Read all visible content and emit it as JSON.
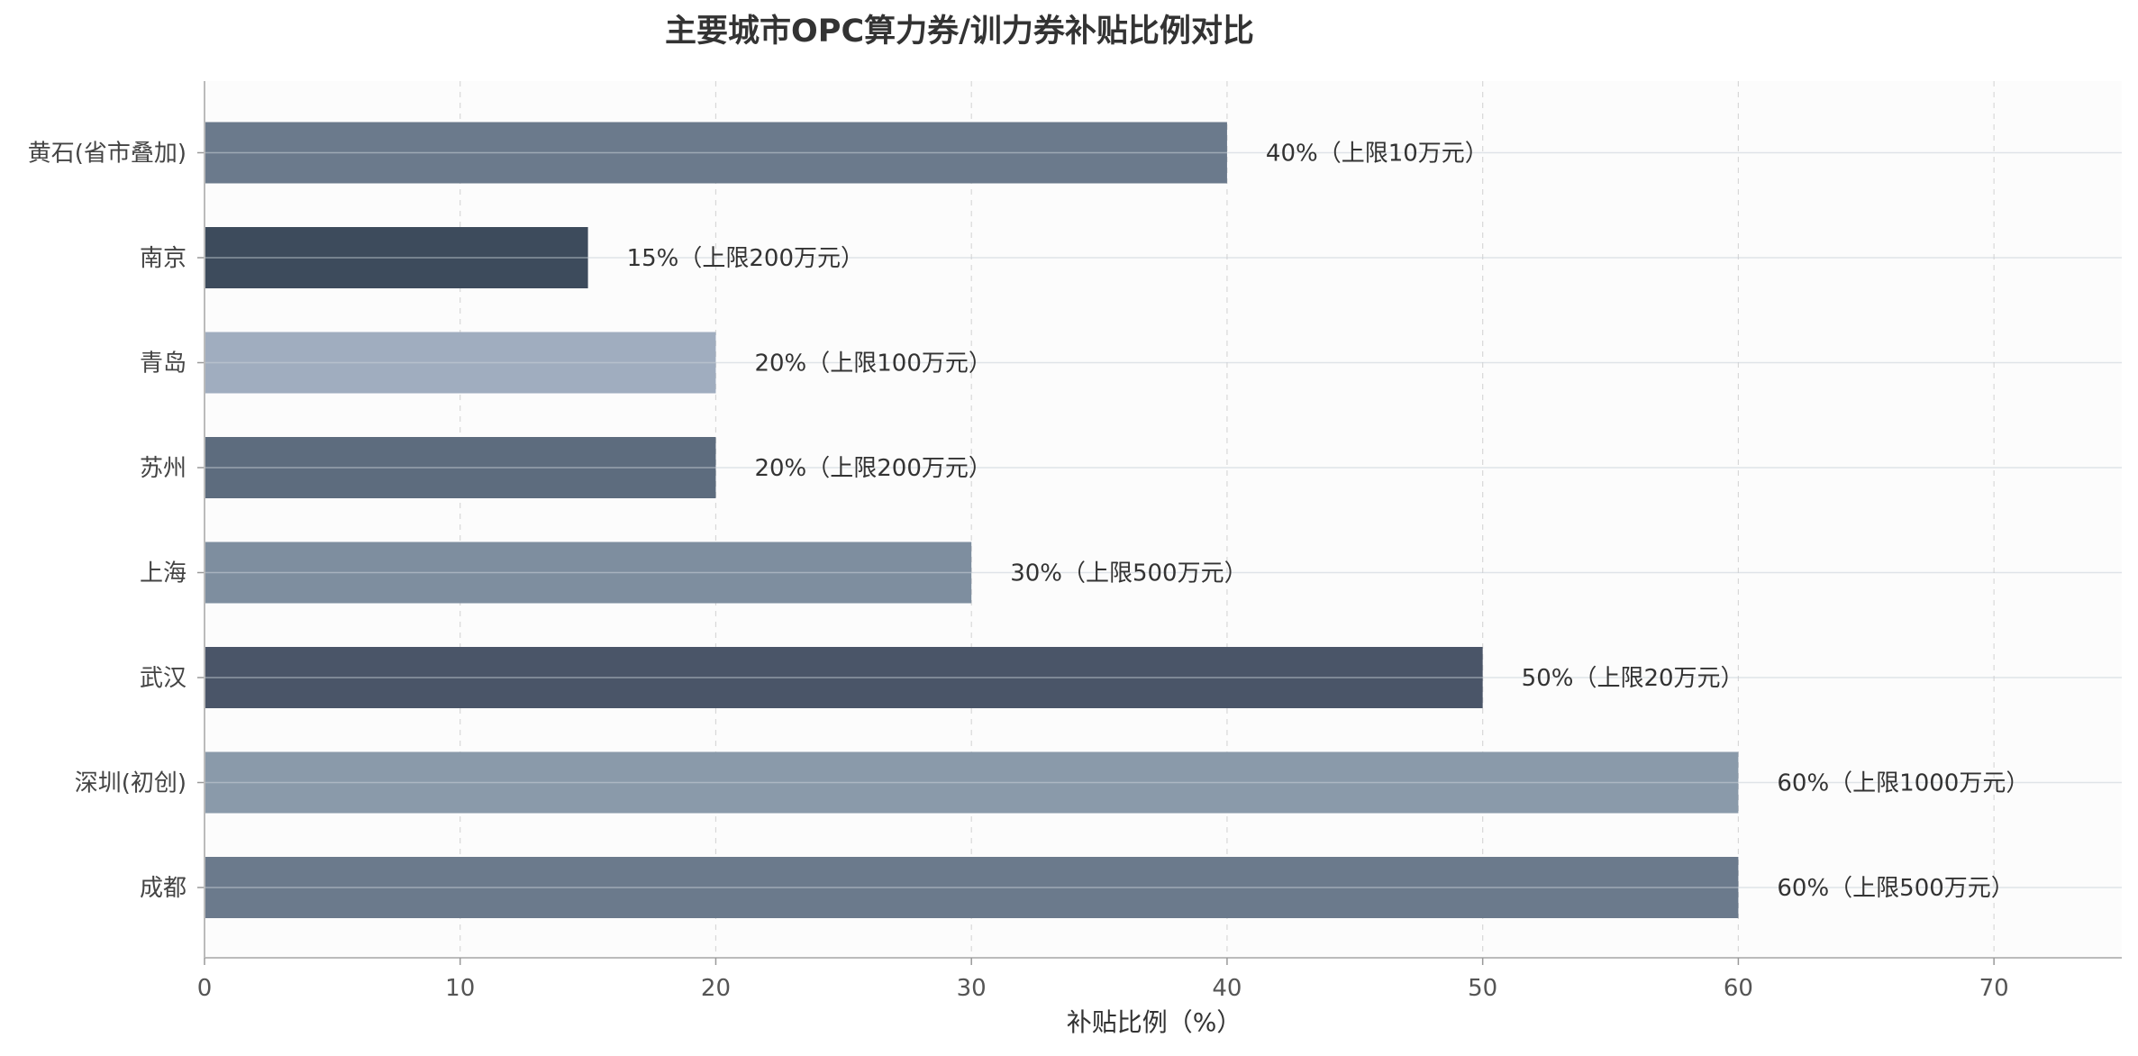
{
  "chart_data": {
    "type": "bar",
    "orientation": "horizontal",
    "title": "主要城市OPC算力券/训力券补贴比例对比",
    "xlabel": "补贴比例（%）",
    "ylabel": "",
    "xlim": [
      0,
      75
    ],
    "xticks": [
      0,
      10,
      20,
      30,
      40,
      50,
      60,
      70
    ],
    "grid": true,
    "legend": "none",
    "categories": [
      "成都",
      "深圳(初创)",
      "武汉",
      "上海",
      "苏州",
      "青岛",
      "南京",
      "黄石(省市叠加)"
    ],
    "values": [
      60,
      60,
      50,
      30,
      20,
      20,
      15,
      40
    ],
    "data_labels": [
      "60%（上限500万元）",
      "60%（上限1000万元）",
      "50%（上限20万元）",
      "30%（上限500万元）",
      "20%（上限200万元）",
      "20%（上限100万元）",
      "15%（上限200万元）",
      "40%（上限10万元）"
    ],
    "colors": [
      "#6b7a8c",
      "#8a9aaa",
      "#4a5568",
      "#7e8e9f",
      "#5d6c7e",
      "#a0adbf",
      "#3d4b5c",
      "#6b7a8c"
    ]
  }
}
